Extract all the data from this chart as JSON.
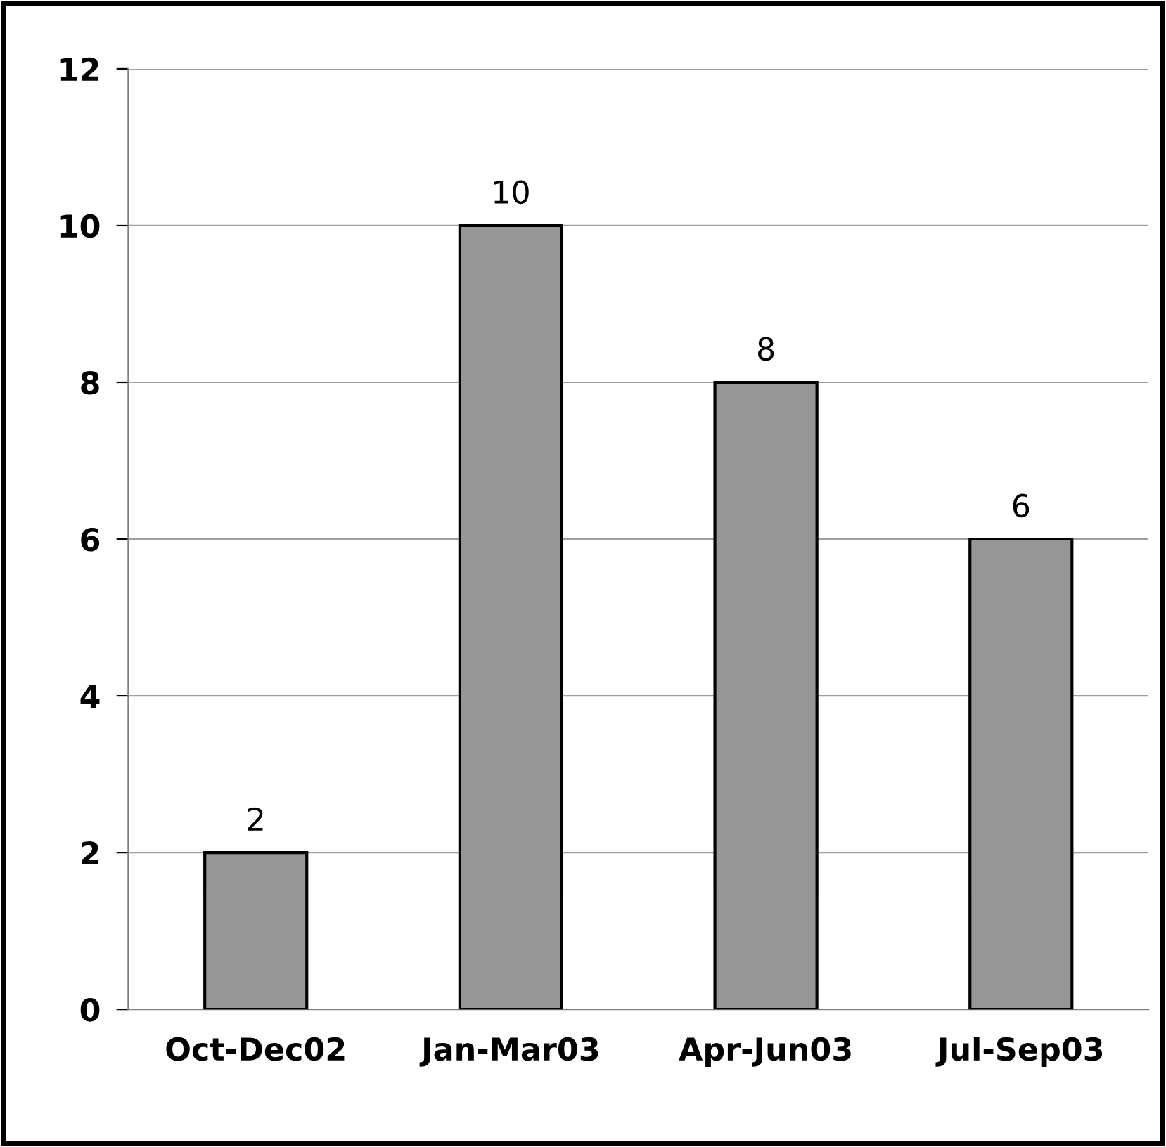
{
  "chart_data": {
    "type": "bar",
    "categories": [
      "Oct-Dec02",
      "Jan-Mar03",
      "Apr-Jun03",
      "Jul-Sep03"
    ],
    "values": [
      2,
      10,
      8,
      6
    ],
    "color": "#969696",
    "ylim": [
      0,
      12
    ],
    "yticks": [
      0,
      2,
      4,
      6,
      8,
      10,
      12
    ],
    "grid": "y",
    "data_labels": true,
    "legend": false
  }
}
